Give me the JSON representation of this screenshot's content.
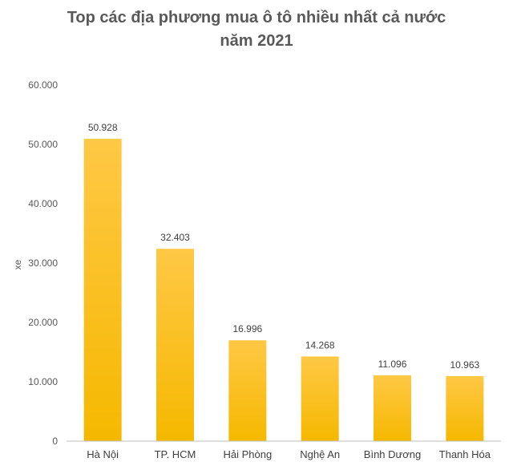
{
  "chart_data": {
    "type": "bar",
    "title_lines": [
      "Top các địa phương mua ô tô nhiều nhất cả nước",
      "năm 2021"
    ],
    "ylabel": "xe",
    "xlabel": "",
    "categories": [
      "Hà Nội",
      "TP. HCM",
      "Hải Phòng",
      "Nghệ An",
      "Bình Dương",
      "Thanh Hóa"
    ],
    "values": [
      50928,
      32403,
      16996,
      14268,
      11096,
      10963
    ],
    "value_labels": [
      "50.928",
      "32.403",
      "16.996",
      "14.268",
      "11.096",
      "10.963"
    ],
    "ylim": [
      0,
      60000
    ],
    "yticks": [
      0,
      10000,
      20000,
      30000,
      40000,
      50000,
      60000
    ],
    "ytick_labels": [
      "0",
      "10.000",
      "20.000",
      "30.000",
      "40.000",
      "50.000",
      "60.000"
    ],
    "grid": false,
    "legend": "none",
    "colors": {
      "bar_top": "#FFC845",
      "bar_bottom": "#F5B800",
      "axis": "#BFBFBF"
    }
  }
}
